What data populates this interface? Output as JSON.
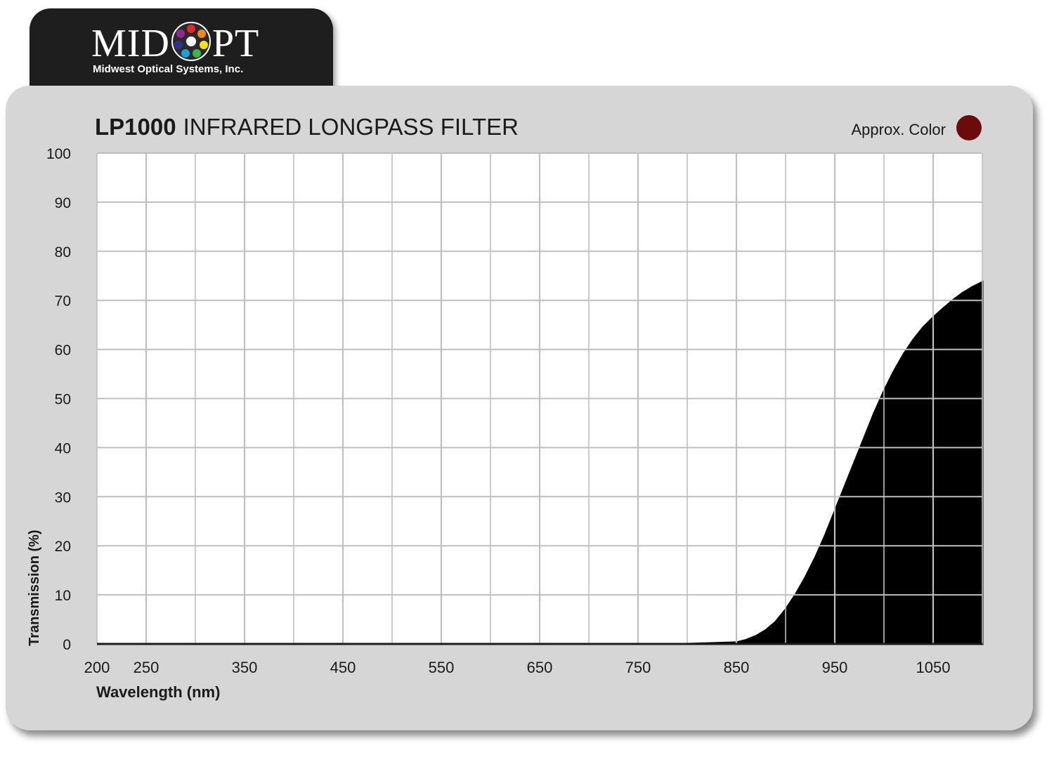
{
  "logo": {
    "brand_left": "MID",
    "brand_right": "PT",
    "tagline": "Midwest Optical Systems, Inc."
  },
  "chart_data": {
    "type": "area",
    "title_bold": "LP1000",
    "title_rest": "INFRARED LONGPASS FILTER",
    "legend_label": "Approx. Color",
    "approx_color": "#6b0b0b",
    "xlabel": "Wavelength (nm)",
    "ylabel": "Transmission (%)",
    "xlim": [
      200,
      1100
    ],
    "ylim": [
      0,
      100
    ],
    "x_ticks": [
      200,
      250,
      350,
      450,
      550,
      650,
      750,
      850,
      950,
      1050
    ],
    "y_ticks": [
      0,
      10,
      20,
      30,
      40,
      50,
      60,
      70,
      80,
      90,
      100
    ],
    "grid": true,
    "fill_color": "#000000",
    "series": [
      {
        "x": [
          200,
          800,
          850,
          860,
          870,
          880,
          890,
          900,
          910,
          920,
          930,
          940,
          950,
          960,
          970,
          980,
          990,
          1000,
          1010,
          1020,
          1030,
          1040,
          1050,
          1060,
          1070,
          1080,
          1090,
          1100
        ],
        "y": [
          0,
          0,
          0.3,
          0.8,
          1.6,
          2.8,
          4.5,
          7,
          10,
          13.5,
          17.5,
          22,
          27,
          32,
          37,
          42,
          47,
          51.5,
          55.5,
          59,
          62,
          64.5,
          66.5,
          68.3,
          70,
          71.5,
          72.7,
          73.7
        ]
      }
    ]
  }
}
